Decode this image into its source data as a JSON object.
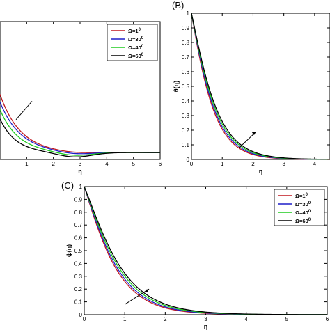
{
  "panel_labels": {
    "b": "(B)",
    "c": "(C)"
  },
  "colors": {
    "series": [
      "#c0171f",
      "#1f1fc8",
      "#1ecb1e",
      "#000000"
    ],
    "axis": "#000000"
  },
  "chart_data": [
    {
      "id": "A",
      "type": "line",
      "xlabel": "η",
      "ylabel": "",
      "xlim": [
        0,
        6
      ],
      "xticks": [
        "1",
        "2",
        "3",
        "4",
        "5",
        "6"
      ],
      "xtick_values": [
        1,
        2,
        3,
        4,
        5,
        6
      ],
      "legend": {
        "placement": "top-right",
        "entries": [
          {
            "prefix": "Ω=1",
            "sup": "0"
          },
          {
            "prefix": "Ω=30",
            "sup": "0"
          },
          {
            "prefix": "Ω=40",
            "sup": "0"
          },
          {
            "prefix": "Ω=60",
            "sup": "0"
          }
        ]
      },
      "asymptote": 0.045,
      "series": [
        {
          "amp": 0.38,
          "decay": 1.3
        },
        {
          "amp": 0.33,
          "decay": 1.3
        },
        {
          "amp": 0.28,
          "decay": 1.45
        },
        {
          "amp": 0.22,
          "decay": 1.7
        }
      ],
      "ylim": [
        0,
        0.9
      ]
    },
    {
      "id": "B",
      "type": "line",
      "xlabel": "η",
      "ylabel": "θ(η)",
      "xlim": [
        0,
        4.5
      ],
      "ylim": [
        0,
        1
      ],
      "xticks": [
        "0",
        "1",
        "2",
        "3",
        "4"
      ],
      "xtick_values": [
        0,
        1,
        2,
        3,
        4
      ],
      "yticks": [
        "0",
        "0.1",
        "0.2",
        "0.3",
        "0.4",
        "0.5",
        "0.6",
        "0.7",
        "0.8",
        "0.9",
        "1"
      ],
      "ytick_values": [
        0,
        0.1,
        0.2,
        0.3,
        0.4,
        0.5,
        0.6,
        0.7,
        0.8,
        0.9,
        1
      ],
      "series": [
        {
          "decay_rate": 1.78
        },
        {
          "decay_rate": 1.7
        },
        {
          "decay_rate": 1.62
        },
        {
          "decay_rate": 1.55
        }
      ]
    },
    {
      "id": "C",
      "type": "line",
      "xlabel": "η",
      "ylabel": "ϕ(η)",
      "xlim": [
        0,
        6
      ],
      "ylim": [
        0,
        1
      ],
      "xticks": [
        "0",
        "1",
        "2",
        "3",
        "4",
        "5",
        "6"
      ],
      "xtick_values": [
        0,
        1,
        2,
        3,
        4,
        5,
        6
      ],
      "yticks": [
        "0",
        "0.1",
        "0.2",
        "0.3",
        "0.4",
        "0.5",
        "0.6",
        "0.7",
        "0.8",
        "0.9",
        "1"
      ],
      "ytick_values": [
        0,
        0.1,
        0.2,
        0.3,
        0.4,
        0.5,
        0.6,
        0.7,
        0.8,
        0.9,
        1
      ],
      "legend": {
        "placement": "top-right",
        "entries": [
          {
            "prefix": "Ω=1",
            "sup": "0"
          },
          {
            "prefix": "Ω=30",
            "sup": "0"
          },
          {
            "prefix": "Ω=40",
            "sup": "0"
          },
          {
            "prefix": "Ω=60",
            "sup": "0"
          }
        ]
      },
      "series": [
        {
          "decay_rate": 1.55
        },
        {
          "decay_rate": 1.48
        },
        {
          "decay_rate": 1.4
        },
        {
          "decay_rate": 1.33
        }
      ]
    }
  ]
}
